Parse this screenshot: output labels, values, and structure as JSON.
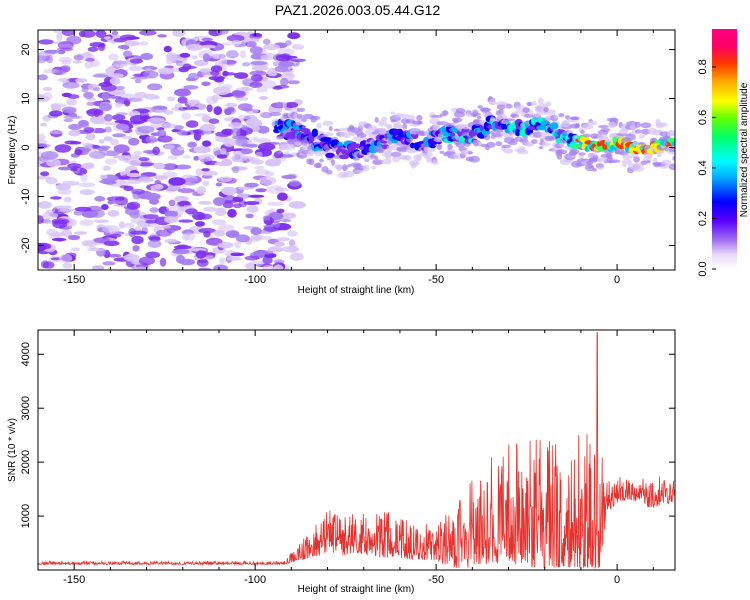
{
  "title": "PAZ1.2026.003.05.44.G12",
  "colors": {
    "line": "#e8302c",
    "spec": "#7b2cf0",
    "spec_light": "#d8c4f7",
    "axis": "#000000"
  },
  "chart_data": [
    {
      "type": "heatmap",
      "title": "PAZ1.2026.003.05.44.G12",
      "xlabel": "Height of straight line (km)",
      "ylabel": "Frequency (Hz)",
      "xlim": [
        -160,
        16
      ],
      "ylim": [
        -25,
        24
      ],
      "xticks": [
        -150,
        -100,
        -50,
        0
      ],
      "yticks": [
        20,
        10,
        0,
        -10,
        -20
      ],
      "noise_region_x": [
        -160,
        -92
      ],
      "signal_ridge": {
        "x": [
          -92,
          -85,
          -80,
          -75,
          -70,
          -65,
          -60,
          -55,
          -50,
          -45,
          -40,
          -35,
          -30,
          -25,
          -20,
          -15,
          -10,
          -5,
          0,
          5,
          10,
          15
        ],
        "freq": [
          4,
          2,
          0,
          -1,
          0,
          1,
          3,
          1,
          2,
          3,
          2,
          5,
          4,
          4,
          5,
          2,
          1,
          0,
          1,
          0,
          0,
          1
        ]
      },
      "colorbar": {
        "label": "Normalized spectral amplitude",
        "range": [
          0,
          0.95
        ],
        "ticks": [
          "0.0",
          "0.2",
          "0.4",
          "0.6",
          "0.8"
        ],
        "tick_values": [
          0.0,
          0.2,
          0.4,
          0.6,
          0.8
        ]
      }
    },
    {
      "type": "line",
      "xlabel": "Height of straight line (km)",
      "ylabel": "SNR (10 * v/v)",
      "xlim": [
        -160,
        16
      ],
      "ylim": [
        0,
        4450
      ],
      "xticks": [
        -150,
        -100,
        -50,
        0
      ],
      "yticks": [
        1000,
        2000,
        3000,
        4000
      ],
      "envelope": {
        "x": [
          -160,
          -92,
          -90,
          -85,
          -80,
          -75,
          -70,
          -65,
          -60,
          -55,
          -50,
          -45,
          -40,
          -35,
          -30,
          -25,
          -20,
          -15,
          -10,
          -5,
          -3,
          0,
          5,
          10,
          15,
          16
        ],
        "base": [
          120,
          120,
          200,
          350,
          550,
          500,
          500,
          500,
          450,
          400,
          350,
          400,
          500,
          700,
          800,
          800,
          700,
          600,
          600,
          700,
          1200,
          1400,
          1400,
          1300,
          1400,
          1500
        ],
        "amp": [
          60,
          60,
          200,
          500,
          800,
          800,
          800,
          900,
          750,
          700,
          650,
          1200,
          1700,
          2000,
          2200,
          2500,
          2700,
          2700,
          2800,
          3000,
          600,
          500,
          400,
          600,
          600,
          400
        ]
      },
      "peak": {
        "x": -5.5,
        "y": 4400
      }
    }
  ]
}
